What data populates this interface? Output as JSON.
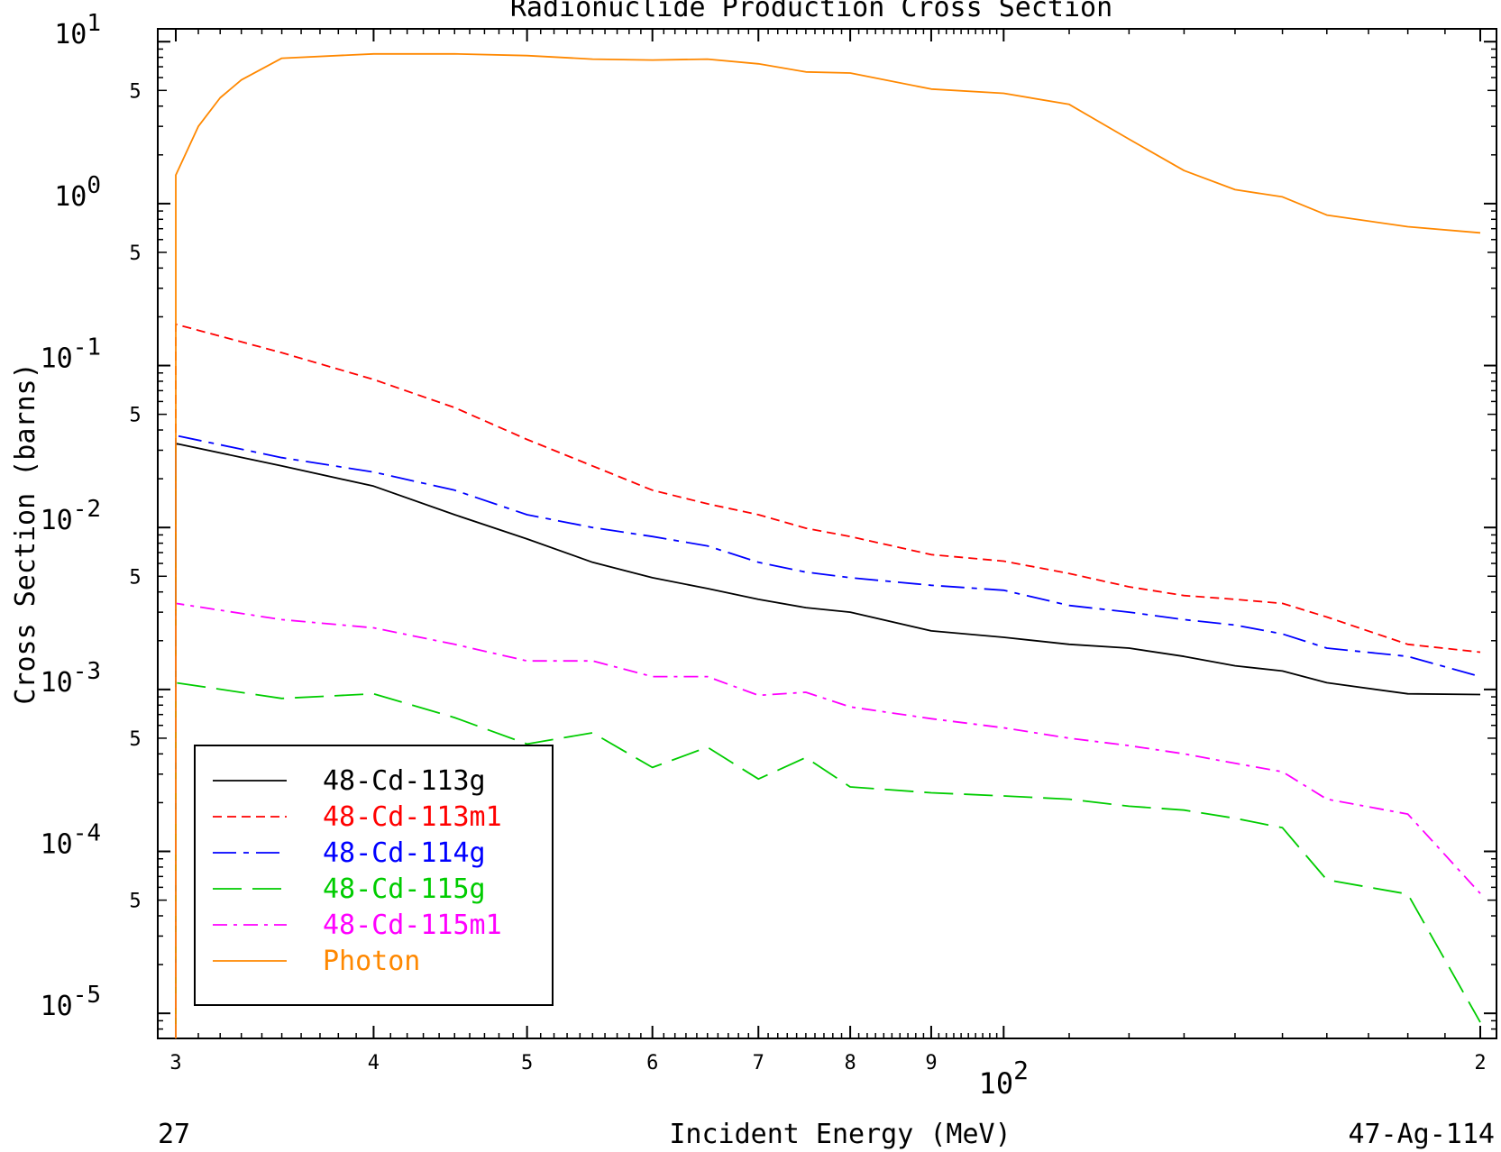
{
  "chart_data": {
    "type": "line",
    "title": "Radionuclide Production Cross Section",
    "xlabel": "Incident Energy (MeV)",
    "ylabel": "Cross Section (barns)",
    "xscale": "log",
    "yscale": "log",
    "xlim": [
      30,
      200
    ],
    "ylim": [
      7e-06,
      12
    ],
    "x_ticks": [
      {
        "value": 30,
        "label": "3"
      },
      {
        "value": 40,
        "label": "4"
      },
      {
        "value": 50,
        "label": "5"
      },
      {
        "value": 60,
        "label": "6"
      },
      {
        "value": 70,
        "label": "7"
      },
      {
        "value": 80,
        "label": "8"
      },
      {
        "value": 90,
        "label": "9"
      },
      {
        "value": 200,
        "label": "2"
      }
    ],
    "x_decade_label": {
      "value": 100,
      "base": "10",
      "exp": "2"
    },
    "y_decades": [
      {
        "value": 10,
        "base": "10",
        "exp": "1"
      },
      {
        "value": 1,
        "base": "10",
        "exp": "0"
      },
      {
        "value": 0.1,
        "base": "10",
        "exp": "-1"
      },
      {
        "value": 0.01,
        "base": "10",
        "exp": "-2"
      },
      {
        "value": 0.001,
        "base": "10",
        "exp": "-3"
      },
      {
        "value": 0.0001,
        "base": "10",
        "exp": "-4"
      },
      {
        "value": 1e-05,
        "base": "10",
        "exp": "-5"
      }
    ],
    "y_minor_label": "5",
    "legend_position": "bottom-left",
    "footer_left": "27",
    "footer_right": "47-Ag-114",
    "series": [
      {
        "name": "48-Cd-113g",
        "color": "#000000",
        "dash": "solid",
        "x": [
          30,
          35,
          40,
          45,
          50,
          55,
          60,
          65,
          70,
          75,
          80,
          90,
          100,
          110,
          120,
          130,
          140,
          150,
          160,
          180,
          200
        ],
        "y": [
          0.033,
          0.024,
          0.018,
          0.012,
          0.0085,
          0.0061,
          0.0049,
          0.0042,
          0.0036,
          0.0032,
          0.003,
          0.0023,
          0.0021,
          0.0019,
          0.0018,
          0.0016,
          0.0014,
          0.0013,
          0.0011,
          0.00094,
          0.00093
        ]
      },
      {
        "name": "48-Cd-113m1",
        "color": "#ff0000",
        "dash": "short",
        "x": [
          30,
          35,
          40,
          45,
          50,
          55,
          60,
          65,
          70,
          75,
          80,
          90,
          100,
          110,
          120,
          130,
          140,
          150,
          160,
          180,
          200
        ],
        "y": [
          0.18,
          0.12,
          0.082,
          0.055,
          0.035,
          0.024,
          0.017,
          0.014,
          0.012,
          0.0099,
          0.0088,
          0.0068,
          0.0062,
          0.0052,
          0.0043,
          0.0038,
          0.0036,
          0.0034,
          0.0028,
          0.0019,
          0.0017
        ]
      },
      {
        "name": "48-Cd-114g",
        "color": "#0000ff",
        "dash": "dashdot",
        "x": [
          30,
          35,
          40,
          45,
          50,
          55,
          60,
          65,
          70,
          75,
          80,
          90,
          100,
          110,
          120,
          130,
          140,
          150,
          160,
          180,
          200
        ],
        "y": [
          0.037,
          0.027,
          0.022,
          0.017,
          0.012,
          0.01,
          0.0088,
          0.0077,
          0.0061,
          0.0053,
          0.0049,
          0.0044,
          0.0041,
          0.0033,
          0.003,
          0.0027,
          0.0025,
          0.0022,
          0.0018,
          0.0016,
          0.0012
        ]
      },
      {
        "name": "48-Cd-115g",
        "color": "#00cc00",
        "dash": "long",
        "x": [
          30,
          35,
          40,
          45,
          50,
          55,
          60,
          65,
          70,
          75,
          80,
          90,
          100,
          110,
          120,
          130,
          140,
          150,
          160,
          180,
          200
        ],
        "y": [
          0.0011,
          0.00088,
          0.00094,
          0.00067,
          0.00046,
          0.00054,
          0.00033,
          0.00044,
          0.00028,
          0.00038,
          0.00025,
          0.00023,
          0.00022,
          0.00021,
          0.00019,
          0.00018,
          0.00016,
          0.00014,
          6.67e-05,
          5.45e-05,
          8.8e-06
        ]
      },
      {
        "name": "48-Cd-115m1",
        "color": "#ff00ff",
        "dash": "dashdot2",
        "x": [
          30,
          35,
          40,
          45,
          50,
          55,
          60,
          65,
          70,
          75,
          80,
          90,
          100,
          110,
          120,
          130,
          140,
          150,
          160,
          180,
          200
        ],
        "y": [
          0.0034,
          0.0027,
          0.0024,
          0.0019,
          0.0015,
          0.0015,
          0.0012,
          0.0012,
          0.00092,
          0.00096,
          0.00078,
          0.00066,
          0.00058,
          0.0005,
          0.00045,
          0.0004,
          0.00035,
          0.00031,
          0.00021,
          0.00017,
          5.5e-05
        ]
      },
      {
        "name": "Photon",
        "color": "#ff8800",
        "dash": "solid",
        "x": [
          30,
          31,
          32,
          33,
          35,
          40,
          45,
          50,
          55,
          60,
          65,
          70,
          75,
          80,
          90,
          100,
          110,
          120,
          130,
          140,
          150,
          160,
          180,
          200
        ],
        "y": [
          1.5,
          3.0,
          4.5,
          5.8,
          7.9,
          8.4,
          8.4,
          8.2,
          7.8,
          7.7,
          7.8,
          7.3,
          6.5,
          6.4,
          5.1,
          4.8,
          4.1,
          2.5,
          1.6,
          1.22,
          1.1,
          0.85,
          0.72,
          0.66
        ]
      }
    ]
  }
}
